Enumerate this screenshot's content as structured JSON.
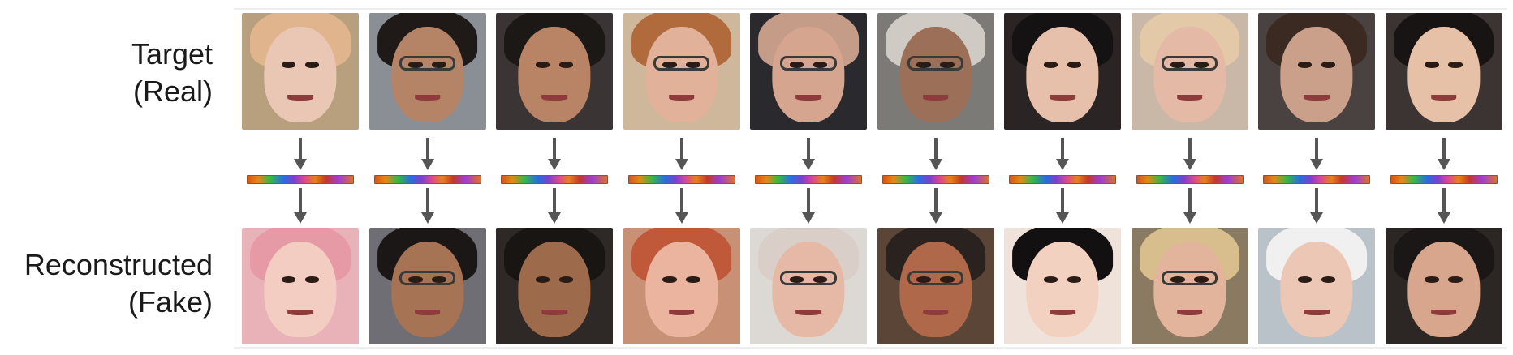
{
  "labels": {
    "target": [
      "Target",
      "(Real)"
    ],
    "reconstructed": [
      "Reconstructed",
      "(Fake)"
    ]
  },
  "colors": {
    "arrow": "#555555",
    "code_gradient": [
      "#d9541a",
      "#39b54a",
      "#2a6de0",
      "#7b3fd0",
      "#d94a8c",
      "#e0851c"
    ]
  },
  "columns": [
    {
      "target": {
        "bg": "#b8a07e",
        "skin": "#e9c7b4",
        "hair": "#e0b58e",
        "glasses": false
      },
      "fake": {
        "bg": "#e8b2b8",
        "skin": "#f3cdc2",
        "hair": "#e59aa6",
        "glasses": false
      }
    },
    {
      "target": {
        "bg": "#8a8f96",
        "skin": "#b58466",
        "hair": "#1f1a18",
        "glasses": true
      },
      "fake": {
        "bg": "#6e6e74",
        "skin": "#a67454",
        "hair": "#1b1716",
        "glasses": true
      }
    },
    {
      "target": {
        "bg": "#3a3534",
        "skin": "#b98466",
        "hair": "#1c1816",
        "glasses": false
      },
      "fake": {
        "bg": "#2e2826",
        "skin": "#9e6a4c",
        "hair": "#191513",
        "glasses": false
      }
    },
    {
      "target": {
        "bg": "#cfb79c",
        "skin": "#e2b19a",
        "hair": "#b06a3c",
        "glasses": true
      },
      "fake": {
        "bg": "#c89176",
        "skin": "#eab49e",
        "hair": "#c0583a",
        "glasses": false
      }
    },
    {
      "target": {
        "bg": "#2a2a2e",
        "skin": "#d6a590",
        "hair": "#c59c88",
        "glasses": true
      },
      "fake": {
        "bg": "#dcd8d4",
        "skin": "#e6b9a6",
        "hair": "#d9cfc8",
        "glasses": true
      }
    },
    {
      "target": {
        "bg": "#7c7a76",
        "skin": "#9b6f58",
        "hair": "#cfcac4",
        "glasses": true
      },
      "fake": {
        "bg": "#5b4536",
        "skin": "#b0684a",
        "hair": "#2a221e",
        "glasses": true
      }
    },
    {
      "target": {
        "bg": "#2a2424",
        "skin": "#e7c0ab",
        "hair": "#141212",
        "glasses": false
      },
      "fake": {
        "bg": "#efe2da",
        "skin": "#f2d1c0",
        "hair": "#121010",
        "glasses": false
      }
    },
    {
      "target": {
        "bg": "#c9b8a8",
        "skin": "#e4b9a5",
        "hair": "#e3c9a7",
        "glasses": true
      },
      "fake": {
        "bg": "#8b7a62",
        "skin": "#e2b49b",
        "hair": "#d8bd8d",
        "glasses": true
      }
    },
    {
      "target": {
        "bg": "#4a4240",
        "skin": "#caa08a",
        "hair": "#3a2a22",
        "glasses": false
      },
      "fake": {
        "bg": "#b9c2c8",
        "skin": "#ecc7b5",
        "hair": "#f0f0f0",
        "glasses": false
      }
    },
    {
      "target": {
        "bg": "#3c3432",
        "skin": "#e6c1a8",
        "hair": "#171413",
        "glasses": false
      },
      "fake": {
        "bg": "#2c2624",
        "skin": "#d7a68c",
        "hair": "#1b1716",
        "glasses": false
      }
    }
  ]
}
